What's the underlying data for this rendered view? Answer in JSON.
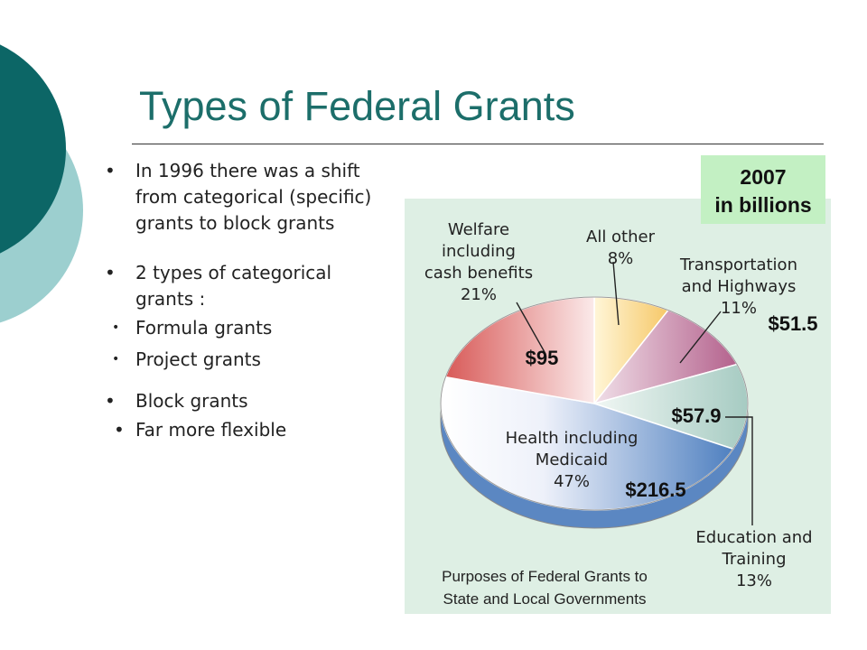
{
  "slide": {
    "title": "Types of Federal Grants",
    "bullets": {
      "b1": "In 1996 there was a shift from categorical (specific) grants to block grants",
      "b2": "2 types of categorical grants :",
      "b2a": "Formula grants",
      "b2b": "Project grants",
      "b3": "Block grants",
      "b3a": "Far more flexible"
    }
  },
  "chart_data": {
    "type": "pie",
    "title": "",
    "note": [
      "Purposes of Federal Grants to",
      "State and Local Governments"
    ],
    "year_badge": [
      "2007",
      "in billions"
    ],
    "slices": [
      {
        "label": [
          "All other",
          "8%"
        ],
        "percent": 8,
        "value": "",
        "color": "#f6c868"
      },
      {
        "label": [
          "Transportation",
          "and Highways",
          "11%"
        ],
        "percent": 11,
        "value": "$51.5",
        "color": "#b4628d"
      },
      {
        "label": [
          "Education and",
          "Training",
          "13%"
        ],
        "percent": 13,
        "value": "$57.9",
        "color": "#a6cbc2"
      },
      {
        "label": [
          "Health including",
          "Medicaid",
          "47%"
        ],
        "percent": 47,
        "value": "$216.5",
        "color": "#4f80c0"
      },
      {
        "label": [
          "Welfare",
          "including",
          "cash benefits",
          "21%"
        ],
        "percent": 21,
        "value": "$95",
        "color": "#d85a58"
      }
    ],
    "colors": {
      "panel": "#deefe4",
      "badge": "#c3f0c3"
    }
  }
}
